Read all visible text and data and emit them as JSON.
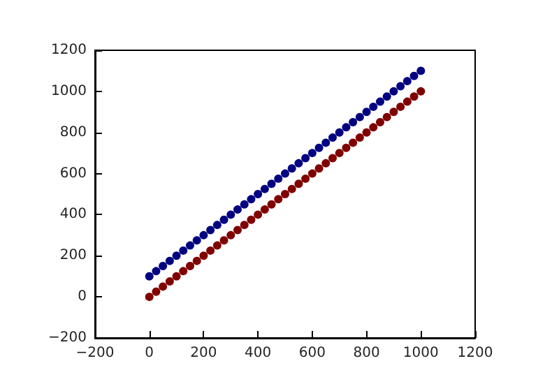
{
  "chart_data": {
    "type": "scatter",
    "marker": "circle",
    "x": [
      0,
      25,
      50,
      75,
      100,
      125,
      150,
      175,
      200,
      225,
      250,
      275,
      300,
      325,
      350,
      375,
      400,
      425,
      450,
      475,
      500,
      525,
      550,
      575,
      600,
      625,
      650,
      675,
      700,
      725,
      750,
      775,
      800,
      825,
      850,
      875,
      900,
      925,
      950,
      975,
      1000
    ],
    "series": [
      {
        "color": "#000080",
        "values": [
          100,
          125,
          150,
          175,
          200,
          225,
          250,
          275,
          300,
          325,
          350,
          375,
          400,
          425,
          450,
          475,
          500,
          525,
          550,
          575,
          600,
          625,
          650,
          675,
          700,
          725,
          750,
          775,
          800,
          825,
          850,
          875,
          900,
          925,
          950,
          975,
          1000,
          1025,
          1050,
          1075,
          1100
        ]
      },
      {
        "color": "#800000",
        "values": [
          0,
          25,
          50,
          75,
          100,
          125,
          150,
          175,
          200,
          225,
          250,
          275,
          300,
          325,
          350,
          375,
          400,
          425,
          450,
          475,
          500,
          525,
          550,
          575,
          600,
          625,
          650,
          675,
          700,
          725,
          750,
          775,
          800,
          825,
          850,
          875,
          900,
          925,
          950,
          975,
          1000
        ]
      }
    ],
    "xlim": [
      -200,
      1200
    ],
    "ylim": [
      -200,
      1200
    ],
    "xticks": [
      {
        "value": -200,
        "label": "−200"
      },
      0,
      200,
      400,
      600,
      800,
      1000,
      1200
    ],
    "yticks": [
      {
        "value": -200,
        "label": "−200"
      },
      0,
      200,
      400,
      600,
      800,
      1000,
      1200
    ]
  }
}
